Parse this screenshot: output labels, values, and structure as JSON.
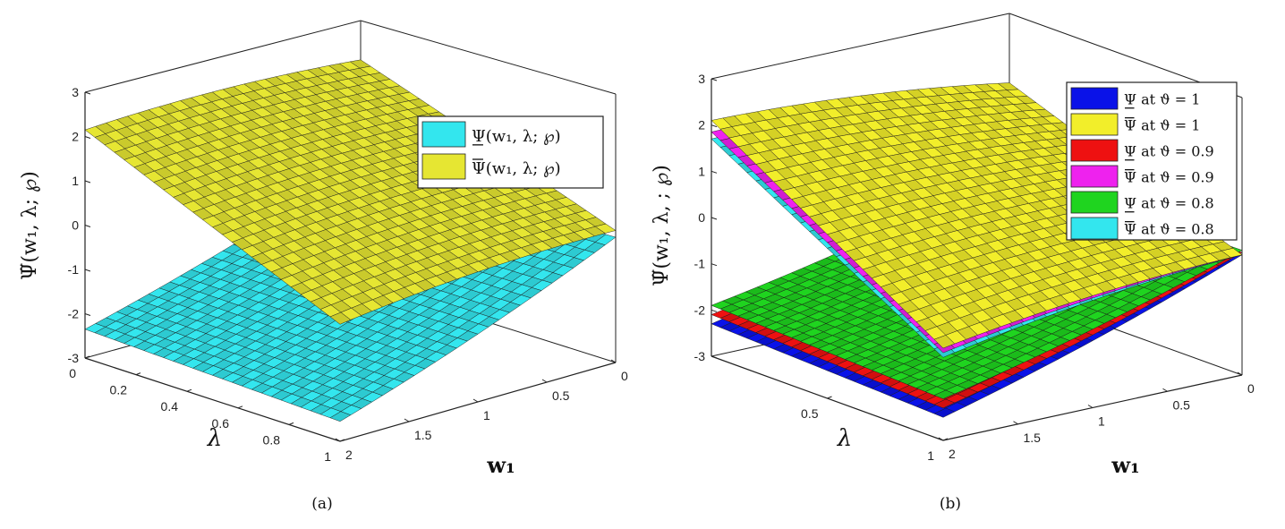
{
  "chart_data": [
    {
      "type": "surface",
      "caption": "(a)",
      "zlabel": "Ψ̃(w₁, λ; ℘)",
      "xlabel": "w₁",
      "ylabel": "λ",
      "zlim": [
        -3,
        3
      ],
      "z_ticks": [
        "3",
        "2",
        "1",
        "0",
        "-1",
        "-2",
        "-3"
      ],
      "w1_ticks": [
        "2",
        "1.5",
        "1",
        "0.5",
        "0"
      ],
      "lambda_ticks": [
        "0",
        "0.2",
        "0.4",
        "0.6",
        "0.8",
        "1"
      ],
      "legend": [
        {
          "label": "Ψ(w₁, λ; ℘)",
          "bar": "under",
          "color": "#33e6ee"
        },
        {
          "label": "Ψ(w₁, λ; ℘)",
          "bar": "over",
          "color": "#e6e632"
        }
      ],
      "series": [
        {
          "color": "#33e6ee",
          "z_corners": {
            "w0_l0": -0.3,
            "w2_l0": -2.35,
            "w2_l1": -2.55,
            "w0_l1": -0.2
          }
        },
        {
          "color": "#e6e632",
          "z_corners": {
            "w0_l0": 2.1,
            "w2_l0": 2.15,
            "w2_l1": -0.35,
            "w0_l1": -0.05
          }
        }
      ]
    },
    {
      "type": "surface",
      "caption": "(b)",
      "zlabel": "Ψ̃(w₁, λ, ; ℘)",
      "xlabel": "w₁",
      "ylabel": "λ",
      "zlim": [
        -3,
        3
      ],
      "z_ticks": [
        "3",
        "2",
        "1",
        "0",
        "-1",
        "-2",
        "-3"
      ],
      "w1_ticks": [
        "2",
        "1.5",
        "1",
        "0.5",
        "0"
      ],
      "lambda_ticks": [
        "0.5",
        "1"
      ],
      "legend": [
        {
          "label": "Ψ at ϑ = 1",
          "bar": "under",
          "color": "#0a12e8"
        },
        {
          "label": "Ψ at ϑ = 1",
          "bar": "over",
          "color": "#f2ee2a"
        },
        {
          "label": "Ψ at ϑ = 0.9",
          "bar": "under",
          "color": "#ee1111"
        },
        {
          "label": "Ψ at ϑ = 0.9",
          "bar": "over",
          "color": "#ee22ee"
        },
        {
          "label": "Ψ at ϑ = 0.8",
          "bar": "under",
          "color": "#1fd41f"
        },
        {
          "label": "Ψ at ϑ = 0.8",
          "bar": "over",
          "color": "#33e6ee"
        }
      ],
      "series": [
        {
          "color": "#0a12e8",
          "z_corners": {
            "w0_l0": -0.5,
            "w2_l0": -2.3,
            "w2_l1": -2.5,
            "w0_l1": -0.4
          }
        },
        {
          "color": "#ee1111",
          "z_corners": {
            "w0_l0": -0.45,
            "w2_l0": -2.1,
            "w2_l1": -2.3,
            "w0_l1": -0.35
          }
        },
        {
          "color": "#1fd41f",
          "z_corners": {
            "w0_l0": -0.4,
            "w2_l0": -1.9,
            "w2_l1": -2.1,
            "w0_l1": -0.3
          }
        },
        {
          "color": "#33e6ee",
          "z_corners": {
            "w0_l0": 1.3,
            "w2_l0": 1.7,
            "w2_l1": -1.2,
            "w0_l1": -0.4
          }
        },
        {
          "color": "#ee22ee",
          "z_corners": {
            "w0_l0": 1.4,
            "w2_l0": 1.85,
            "w2_l1": -1.1,
            "w0_l1": -0.4
          }
        },
        {
          "color": "#f2ee2a",
          "z_corners": {
            "w0_l0": 1.5,
            "w2_l0": 2.1,
            "w2_l1": -1.0,
            "w0_l1": -0.4
          }
        }
      ]
    }
  ],
  "legend_word": "at"
}
